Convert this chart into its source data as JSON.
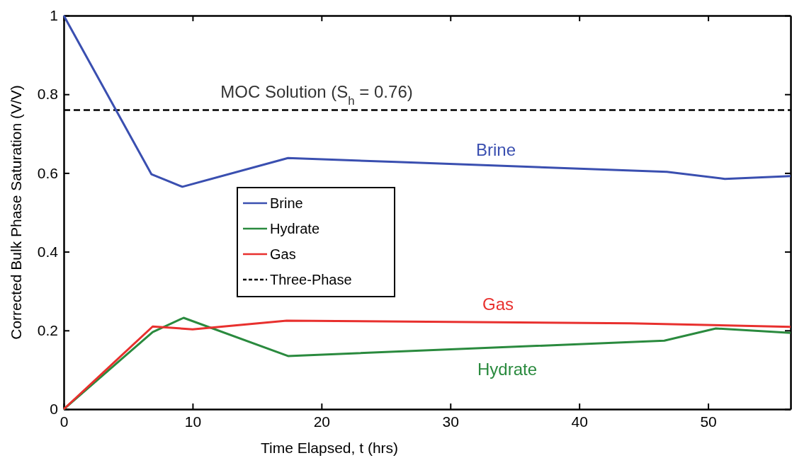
{
  "chart_data": {
    "type": "line",
    "xlabel": "Time Elapsed, t (hrs)",
    "ylabel": "Corrected Bulk Phase Saturation (V/V)",
    "xlim": [
      0,
      56.4
    ],
    "xticks": [
      0,
      10,
      20,
      30,
      40,
      50
    ],
    "ylim": [
      0,
      1
    ],
    "yticks": [
      0,
      0.2,
      0.4,
      0.6,
      0.8,
      1
    ],
    "series": [
      {
        "name": "Brine",
        "color": "#3a4fb0",
        "x": [
          0,
          6.8,
          9.2,
          17.4,
          25.8,
          46.8,
          51.3,
          56.4
        ],
        "values": [
          1,
          0.597,
          0.565,
          0.638,
          0.628,
          0.603,
          0.585,
          0.592
        ]
      },
      {
        "name": "Hydrate",
        "color": "#2a8a3e",
        "x": [
          0,
          6.9,
          9.3,
          17.4,
          46.6,
          50.6,
          56.4
        ],
        "values": [
          0,
          0.196,
          0.232,
          0.135,
          0.174,
          0.205,
          0.194
        ]
      },
      {
        "name": "Gas",
        "color": "#e8302e",
        "x": [
          0,
          6.9,
          10,
          17.3,
          44,
          56.4
        ],
        "values": [
          0,
          0.21,
          0.203,
          0.225,
          0.218,
          0.209
        ]
      }
    ],
    "ref_lines": [
      {
        "axis": "y",
        "value": 0.76,
        "label": "Three-Phase",
        "color": "#000000",
        "line_style": "dashed"
      }
    ],
    "annotations": [
      "Brine",
      "Hydrate",
      "Gas",
      "MOC Solution (S$_{h}$ = 0.76)"
    ],
    "legend": "center left",
    "marker": "none",
    "line_style": "solid",
    "grid": false
  }
}
